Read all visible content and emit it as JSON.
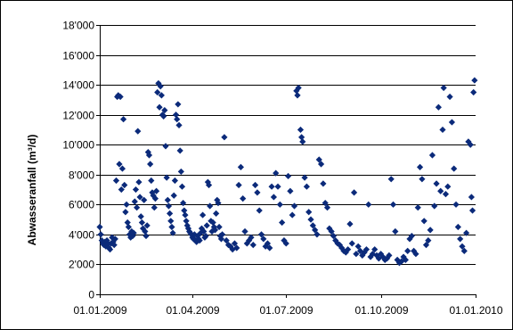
{
  "chart_data": {
    "type": "scatter",
    "title": "",
    "xlabel": "",
    "ylabel": "Abwasseranfall (m³/d)",
    "x_axis": {
      "type": "date",
      "range": [
        "2009-01-01",
        "2010-01-01"
      ],
      "ticks": [
        "2009-01-01",
        "2009-04-01",
        "2009-07-01",
        "2009-10-01",
        "2010-01-01"
      ],
      "tick_labels": [
        "01.01.2009",
        "01.04.2009",
        "01.07.2009",
        "01.10.2009",
        "01.01.2010"
      ]
    },
    "y_axis": {
      "range": [
        0,
        18000
      ],
      "ticks": [
        0,
        2000,
        4000,
        6000,
        8000,
        10000,
        12000,
        14000,
        16000,
        18000
      ],
      "tick_labels": [
        "0",
        "2'000",
        "4'000",
        "6'000",
        "8'000",
        "10'000",
        "12'000",
        "14'000",
        "16'000",
        "18'000"
      ]
    },
    "grid": true,
    "legend": "none",
    "marker": "diamond",
    "marker_color": "#0b2a7a",
    "series": [
      {
        "points": [
          [
            "2009-01-01",
            4500
          ],
          [
            "2009-01-02",
            4000
          ],
          [
            "2009-01-03",
            3600
          ],
          [
            "2009-01-04",
            3400
          ],
          [
            "2009-01-05",
            3300
          ],
          [
            "2009-01-06",
            3500
          ],
          [
            "2009-01-07",
            3200
          ],
          [
            "2009-01-08",
            3600
          ],
          [
            "2009-01-09",
            3400
          ],
          [
            "2009-01-10",
            3100
          ],
          [
            "2009-01-11",
            3000
          ],
          [
            "2009-01-12",
            3400
          ],
          [
            "2009-01-13",
            3800
          ],
          [
            "2009-01-14",
            3500
          ],
          [
            "2009-01-15",
            3300
          ],
          [
            "2009-01-16",
            3700
          ],
          [
            "2009-01-17",
            7600
          ],
          [
            "2009-01-18",
            13200
          ],
          [
            "2009-01-19",
            13300
          ],
          [
            "2009-01-20",
            8700
          ],
          [
            "2009-01-21",
            13200
          ],
          [
            "2009-01-22",
            7000
          ],
          [
            "2009-01-23",
            8400
          ],
          [
            "2009-01-24",
            11700
          ],
          [
            "2009-01-25",
            7300
          ],
          [
            "2009-01-26",
            5500
          ],
          [
            "2009-01-27",
            6000
          ],
          [
            "2009-01-28",
            4800
          ],
          [
            "2009-01-29",
            4500
          ],
          [
            "2009-01-30",
            4000
          ],
          [
            "2009-01-31",
            3800
          ],
          [
            "2009-02-01",
            4200
          ],
          [
            "2009-02-02",
            3900
          ],
          [
            "2009-02-03",
            4100
          ],
          [
            "2009-02-04",
            6200
          ],
          [
            "2009-02-05",
            7000
          ],
          [
            "2009-02-06",
            5800
          ],
          [
            "2009-02-07",
            10900
          ],
          [
            "2009-02-08",
            7500
          ],
          [
            "2009-02-09",
            6500
          ],
          [
            "2009-02-10",
            5200
          ],
          [
            "2009-02-11",
            4800
          ],
          [
            "2009-02-12",
            4400
          ],
          [
            "2009-02-13",
            6300
          ],
          [
            "2009-02-14",
            4200
          ],
          [
            "2009-02-15",
            3900
          ],
          [
            "2009-02-16",
            4600
          ],
          [
            "2009-02-17",
            9500
          ],
          [
            "2009-02-18",
            9300
          ],
          [
            "2009-02-19",
            8700
          ],
          [
            "2009-02-20",
            7600
          ],
          [
            "2009-02-21",
            6800
          ],
          [
            "2009-02-22",
            6600
          ],
          [
            "2009-02-23",
            5800
          ],
          [
            "2009-02-24",
            6400
          ],
          [
            "2009-02-25",
            6900
          ],
          [
            "2009-02-26",
            13500
          ],
          [
            "2009-02-27",
            14100
          ],
          [
            "2009-02-28",
            12500
          ],
          [
            "2009-03-01",
            13900
          ],
          [
            "2009-03-02",
            13300
          ],
          [
            "2009-03-03",
            12000
          ],
          [
            "2009-03-04",
            11900
          ],
          [
            "2009-03-05",
            12300
          ],
          [
            "2009-03-06",
            9900
          ],
          [
            "2009-03-07",
            7800
          ],
          [
            "2009-03-08",
            6300
          ],
          [
            "2009-03-09",
            5900
          ],
          [
            "2009-03-10",
            5400
          ],
          [
            "2009-03-11",
            4900
          ],
          [
            "2009-03-12",
            4500
          ],
          [
            "2009-03-13",
            4100
          ],
          [
            "2009-03-14",
            6600
          ],
          [
            "2009-03-15",
            7600
          ],
          [
            "2009-03-16",
            12000
          ],
          [
            "2009-03-17",
            11700
          ],
          [
            "2009-03-18",
            12700
          ],
          [
            "2009-03-19",
            11300
          ],
          [
            "2009-03-20",
            9600
          ],
          [
            "2009-03-21",
            8200
          ],
          [
            "2009-03-22",
            7200
          ],
          [
            "2009-03-23",
            6100
          ],
          [
            "2009-03-24",
            5600
          ],
          [
            "2009-03-25",
            5300
          ],
          [
            "2009-03-26",
            4900
          ],
          [
            "2009-03-27",
            4600
          ],
          [
            "2009-03-28",
            4400
          ],
          [
            "2009-03-29",
            4200
          ],
          [
            "2009-03-30",
            4100
          ],
          [
            "2009-03-31",
            4000
          ],
          [
            "2009-04-01",
            3800
          ],
          [
            "2009-04-02",
            3700
          ],
          [
            "2009-04-03",
            4000
          ],
          [
            "2009-04-04",
            3600
          ],
          [
            "2009-04-05",
            3500
          ],
          [
            "2009-04-06",
            3900
          ],
          [
            "2009-04-07",
            3700
          ],
          [
            "2009-04-08",
            3600
          ],
          [
            "2009-04-09",
            4100
          ],
          [
            "2009-04-10",
            4400
          ],
          [
            "2009-04-11",
            5300
          ],
          [
            "2009-04-12",
            4200
          ],
          [
            "2009-04-13",
            3800
          ],
          [
            "2009-04-14",
            3900
          ],
          [
            "2009-04-15",
            4600
          ],
          [
            "2009-04-16",
            7500
          ],
          [
            "2009-04-17",
            7300
          ],
          [
            "2009-04-18",
            5900
          ],
          [
            "2009-04-19",
            4900
          ],
          [
            "2009-04-20",
            4200
          ],
          [
            "2009-04-21",
            4800
          ],
          [
            "2009-04-22",
            4500
          ],
          [
            "2009-04-23",
            4300
          ],
          [
            "2009-04-24",
            5400
          ],
          [
            "2009-04-25",
            6300
          ],
          [
            "2009-04-26",
            6100
          ],
          [
            "2009-04-27",
            4500
          ],
          [
            "2009-04-28",
            3900
          ],
          [
            "2009-04-29",
            3700
          ],
          [
            "2009-04-30",
            4000
          ],
          [
            "2009-05-02",
            10500
          ],
          [
            "2009-05-04",
            3600
          ],
          [
            "2009-05-06",
            3300
          ],
          [
            "2009-05-08",
            3200
          ],
          [
            "2009-05-10",
            3000
          ],
          [
            "2009-05-12",
            3400
          ],
          [
            "2009-05-14",
            3100
          ],
          [
            "2009-05-16",
            7300
          ],
          [
            "2009-05-18",
            8500
          ],
          [
            "2009-05-20",
            6400
          ],
          [
            "2009-05-22",
            4200
          ],
          [
            "2009-05-24",
            3400
          ],
          [
            "2009-05-26",
            3600
          ],
          [
            "2009-05-28",
            3800
          ],
          [
            "2009-05-30",
            3300
          ],
          [
            "2009-06-01",
            7300
          ],
          [
            "2009-06-03",
            6800
          ],
          [
            "2009-06-05",
            5600
          ],
          [
            "2009-06-07",
            4000
          ],
          [
            "2009-06-09",
            3700
          ],
          [
            "2009-06-11",
            3200
          ],
          [
            "2009-06-13",
            3400
          ],
          [
            "2009-06-15",
            3100
          ],
          [
            "2009-06-17",
            7200
          ],
          [
            "2009-06-19",
            6500
          ],
          [
            "2009-06-21",
            8100
          ],
          [
            "2009-06-23",
            7200
          ],
          [
            "2009-06-25",
            6000
          ],
          [
            "2009-06-27",
            4800
          ],
          [
            "2009-06-29",
            3600
          ],
          [
            "2009-07-01",
            3400
          ],
          [
            "2009-07-03",
            7900
          ],
          [
            "2009-07-05",
            6900
          ],
          [
            "2009-07-07",
            5300
          ],
          [
            "2009-07-09",
            5900
          ],
          [
            "2009-07-11",
            13600
          ],
          [
            "2009-07-12",
            13300
          ],
          [
            "2009-07-13",
            13800
          ],
          [
            "2009-07-15",
            11000
          ],
          [
            "2009-07-16",
            10500
          ],
          [
            "2009-07-17",
            10200
          ],
          [
            "2009-07-19",
            7800
          ],
          [
            "2009-07-21",
            7200
          ],
          [
            "2009-07-23",
            5500
          ],
          [
            "2009-07-25",
            5000
          ],
          [
            "2009-07-27",
            4600
          ],
          [
            "2009-07-29",
            4300
          ],
          [
            "2009-07-31",
            4000
          ],
          [
            "2009-08-02",
            9000
          ],
          [
            "2009-08-04",
            8700
          ],
          [
            "2009-08-06",
            7400
          ],
          [
            "2009-08-08",
            6100
          ],
          [
            "2009-08-10",
            5800
          ],
          [
            "2009-08-12",
            4400
          ],
          [
            "2009-08-14",
            4200
          ],
          [
            "2009-08-16",
            3900
          ],
          [
            "2009-08-18",
            3600
          ],
          [
            "2009-08-20",
            3400
          ],
          [
            "2009-08-22",
            3300
          ],
          [
            "2009-08-24",
            3100
          ],
          [
            "2009-08-26",
            2900
          ],
          [
            "2009-08-28",
            2800
          ],
          [
            "2009-08-30",
            3000
          ],
          [
            "2009-09-01",
            4700
          ],
          [
            "2009-09-03",
            3400
          ],
          [
            "2009-09-05",
            6800
          ],
          [
            "2009-09-07",
            2700
          ],
          [
            "2009-09-09",
            3200
          ],
          [
            "2009-09-11",
            2900
          ],
          [
            "2009-09-13",
            2600
          ],
          [
            "2009-09-15",
            2800
          ],
          [
            "2009-09-17",
            3000
          ],
          [
            "2009-09-19",
            6000
          ],
          [
            "2009-09-21",
            2500
          ],
          [
            "2009-09-23",
            2700
          ],
          [
            "2009-09-25",
            3000
          ],
          [
            "2009-09-27",
            2600
          ],
          [
            "2009-09-29",
            2400
          ],
          [
            "2009-10-01",
            2700
          ],
          [
            "2009-10-03",
            2500
          ],
          [
            "2009-10-05",
            2300
          ],
          [
            "2009-10-07",
            2400
          ],
          [
            "2009-10-09",
            2600
          ],
          [
            "2009-10-11",
            7700
          ],
          [
            "2009-10-13",
            6000
          ],
          [
            "2009-10-15",
            4200
          ],
          [
            "2009-10-17",
            2300
          ],
          [
            "2009-10-19",
            2100
          ],
          [
            "2009-10-21",
            2200
          ],
          [
            "2009-10-23",
            2500
          ],
          [
            "2009-10-25",
            2300
          ],
          [
            "2009-10-27",
            2900
          ],
          [
            "2009-10-29",
            3700
          ],
          [
            "2009-10-31",
            3900
          ],
          [
            "2009-11-02",
            2900
          ],
          [
            "2009-11-04",
            2700
          ],
          [
            "2009-11-06",
            5800
          ],
          [
            "2009-11-08",
            8500
          ],
          [
            "2009-11-10",
            7700
          ],
          [
            "2009-11-12",
            4900
          ],
          [
            "2009-11-14",
            3300
          ],
          [
            "2009-11-16",
            3600
          ],
          [
            "2009-11-18",
            4300
          ],
          [
            "2009-11-20",
            9300
          ],
          [
            "2009-11-22",
            5900
          ],
          [
            "2009-11-24",
            7400
          ],
          [
            "2009-11-26",
            12500
          ],
          [
            "2009-11-28",
            6900
          ],
          [
            "2009-11-30",
            11000
          ],
          [
            "2009-12-01",
            13800
          ],
          [
            "2009-12-03",
            6700
          ],
          [
            "2009-12-05",
            7200
          ],
          [
            "2009-12-07",
            13200
          ],
          [
            "2009-12-09",
            11500
          ],
          [
            "2009-12-11",
            8400
          ],
          [
            "2009-12-13",
            6000
          ],
          [
            "2009-12-15",
            4500
          ],
          [
            "2009-12-17",
            3700
          ],
          [
            "2009-12-19",
            3200
          ],
          [
            "2009-12-21",
            2900
          ],
          [
            "2009-12-23",
            4100
          ],
          [
            "2009-12-25",
            10200
          ],
          [
            "2009-12-27",
            10000
          ],
          [
            "2009-12-28",
            6500
          ],
          [
            "2009-12-29",
            5600
          ],
          [
            "2009-12-30",
            13500
          ],
          [
            "2009-12-31",
            14300
          ]
        ]
      }
    ]
  }
}
